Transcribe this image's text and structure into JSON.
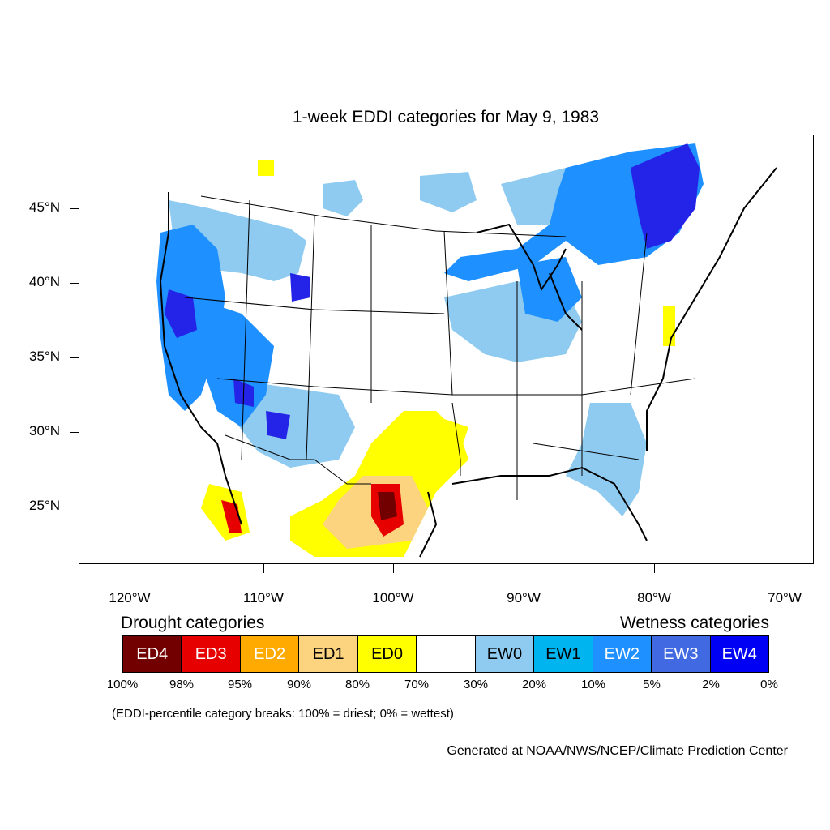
{
  "title": "1-week EDDI categories for May 9, 1983",
  "lat_labels": [
    "45°N",
    "40°N",
    "35°N",
    "30°N",
    "25°N"
  ],
  "lon_labels": [
    "120°W",
    "110°W",
    "100°W",
    "90°W",
    "80°W",
    "70°W"
  ],
  "legend": {
    "drought_heading": "Drought categories",
    "wetness_heading": "Wetness categories",
    "categories": [
      {
        "label": "ED4",
        "color": "#730000",
        "text_color": "#ffffff"
      },
      {
        "label": "ED3",
        "color": "#e60000",
        "text_color": "#ffffff"
      },
      {
        "label": "ED2",
        "color": "#ffaa00",
        "text_color": "#ffffff"
      },
      {
        "label": "ED1",
        "color": "#fcd37f",
        "text_color": "#000000"
      },
      {
        "label": "ED0",
        "color": "#ffff00",
        "text_color": "#000000"
      },
      {
        "label": "",
        "color": "#ffffff",
        "text_color": "#000000"
      },
      {
        "label": "EW0",
        "color": "#8fcbf0",
        "text_color": "#000000"
      },
      {
        "label": "EW1",
        "color": "#00b4f0",
        "text_color": "#000000"
      },
      {
        "label": "EW2",
        "color": "#1e90ff",
        "text_color": "#ffffff"
      },
      {
        "label": "EW3",
        "color": "#4169e1",
        "text_color": "#ffffff"
      },
      {
        "label": "EW4",
        "color": "#0000f5",
        "text_color": "#ffffff"
      }
    ],
    "percentiles": [
      "100%",
      "98%",
      "95%",
      "90%",
      "80%",
      "70%",
      "30%",
      "20%",
      "10%",
      "5%",
      "2%",
      "0%"
    ]
  },
  "note": "(EDDI-percentile category breaks: 100% = driest; 0% = wettest)",
  "credit": "Generated at NOAA/NWS/NCEP/Climate Prediction Center"
}
